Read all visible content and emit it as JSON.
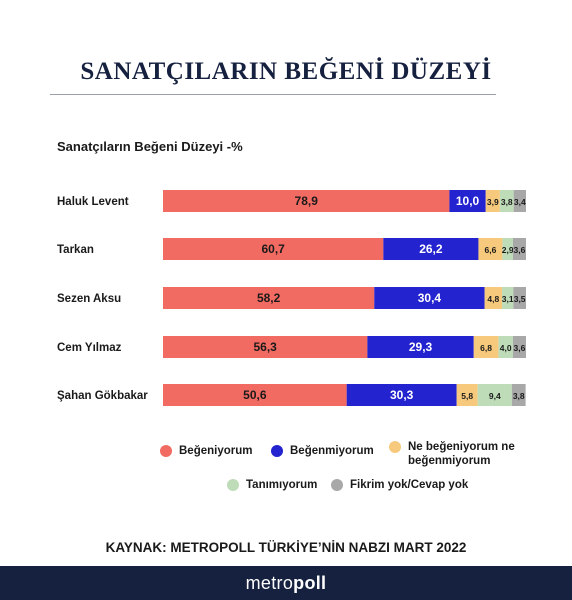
{
  "header": {
    "title": "SANATÇILARIN BEĞENİ DÜZEYİ"
  },
  "chart_data": {
    "type": "bar",
    "orientation": "horizontal",
    "stacked": true,
    "title": "Sanatçıların Beğeni Düzeyi -%",
    "xlim": [
      0,
      100
    ],
    "grid": false,
    "legend_position": "bottom",
    "categories": [
      "Haluk Levent",
      "Tarkan",
      "Sezen Aksu",
      "Cem Yılmaz",
      "Şahan Gökbakar"
    ],
    "series": [
      {
        "name": "Beğeniyorum",
        "color": "#f26b62",
        "values": [
          78.9,
          60.7,
          58.2,
          56.3,
          50.6
        ],
        "labels": [
          "78,9",
          "60,7",
          "58,2",
          "56,3",
          "50,6"
        ]
      },
      {
        "name": "Beğenmiyorum",
        "color": "#2323cf",
        "values": [
          10.0,
          26.2,
          30.4,
          29.3,
          30.3
        ],
        "labels": [
          "10,0",
          "26,2",
          "30,4",
          "29,3",
          "30,3"
        ]
      },
      {
        "name": "Ne beğeniyorum ne beğenmiyorum",
        "color": "#f7c97c",
        "values": [
          3.9,
          6.6,
          4.8,
          6.8,
          5.8
        ],
        "labels": [
          "3,9",
          "6,6",
          "4,8",
          "6,8",
          "5,8"
        ]
      },
      {
        "name": "Tanımıyorum",
        "color": "#bfdcb9",
        "values": [
          3.8,
          2.9,
          3.1,
          4.0,
          9.4
        ],
        "labels": [
          "3,8",
          "2,9",
          "3,1",
          "4,0",
          "9,4"
        ]
      },
      {
        "name": "Fikrim yok/Cevap yok",
        "color": "#a8a8a8",
        "values": [
          3.4,
          3.6,
          3.5,
          3.6,
          3.8
        ],
        "labels": [
          "3,4",
          "3,6",
          "3,5",
          "3,6",
          "3,8"
        ]
      }
    ]
  },
  "legend": {
    "items": [
      {
        "line1": "Beğeniyorum",
        "line2": "",
        "color": "#f26b62"
      },
      {
        "line1": "Beğenmiyorum",
        "line2": "",
        "color": "#2323cf"
      },
      {
        "line1": "Ne beğeniyorum ne",
        "line2": "beğenmiyorum",
        "color": "#f7c97c"
      },
      {
        "line1": "Tanımıyorum",
        "line2": "",
        "color": "#bfdcb9"
      },
      {
        "line1": "Fikrim yok/Cevap yok",
        "line2": "",
        "color": "#a8a8a8"
      }
    ]
  },
  "source": "KAYNAK: METROPOLL TÜRKİYE’NİN NABZI MART 2022",
  "footer": {
    "brand_light": "metro",
    "brand_bold": "poll"
  }
}
